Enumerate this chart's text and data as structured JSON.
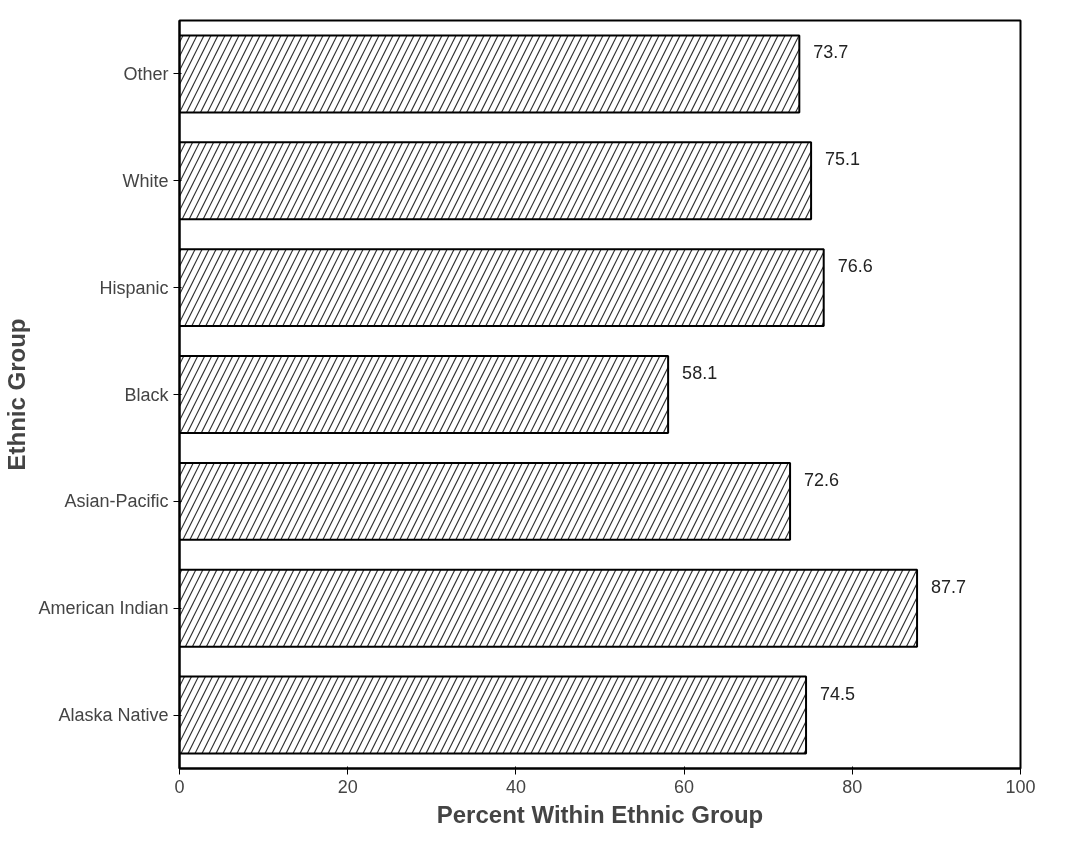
{
  "chart_data": {
    "type": "bar",
    "orientation": "horizontal",
    "xlabel": "Percent Within Ethnic Group",
    "ylabel": "Ethnic Group",
    "categories": [
      "Other",
      "White",
      "Hispanic",
      "Black",
      "Asian-Pacific",
      "American Indian",
      "Alaska Native"
    ],
    "values": [
      73.7,
      75.1,
      76.6,
      58.1,
      72.6,
      87.7,
      74.5
    ],
    "color": "#ffffff",
    "xlim": [
      0,
      100
    ],
    "xticks": [
      0,
      20,
      40,
      60,
      80,
      100
    ],
    "data_labels": true,
    "grid": false
  }
}
